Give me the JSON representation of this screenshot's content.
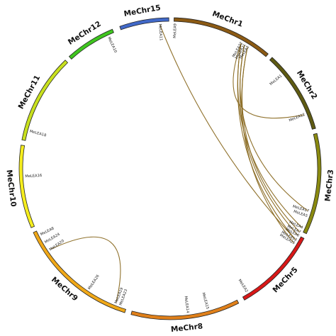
{
  "diagram": {
    "chromosomes": [
      {
        "name": "MeChr1",
        "color": "#8b5a14"
      },
      {
        "name": "MeChr2",
        "color": "#5e5a12"
      },
      {
        "name": "MeChr3",
        "color": "#8a8a10"
      },
      {
        "name": "MeChr5",
        "color": "#d81818"
      },
      {
        "name": "MeChr8",
        "color": "#e0801a"
      },
      {
        "name": "MeChr9",
        "color": "#f0a818"
      },
      {
        "name": "MeChr10",
        "color": "#f6ee1e"
      },
      {
        "name": "MeChr11",
        "color": "#c8e01e"
      },
      {
        "name": "MeChr12",
        "color": "#3fc51f"
      },
      {
        "name": "MeChr15",
        "color": "#4169c8"
      }
    ],
    "genes": [
      "MeLEA9",
      "MeLEA11",
      "MeLEA10",
      "MeLEA22",
      "MeLEA21",
      "MeLEA3",
      "MeLEA1",
      "MeLEA12",
      "MeLEA18",
      "MeLEA16",
      "MeLEA17",
      "MeLEA5",
      "MeLEA4",
      "MeLEA7",
      "MeLEA6",
      "MeLEA13",
      "MeLEA25",
      "MeLEA2",
      "MeLEA15",
      "MeLEA14",
      "MeLEA23",
      "MeLEA19",
      "MeLEA26",
      "MeLEA20",
      "MeLEA24",
      "MeLEA8"
    ],
    "links": [
      [
        "MeLEA11",
        "MeLEA13"
      ],
      [
        "MeLEA12",
        "MeLEA22"
      ],
      [
        "MeLEA22",
        "MeLEA13"
      ],
      [
        "MeLEA21",
        "MeLEA6"
      ],
      [
        "MeLEA3",
        "MeLEA25"
      ],
      [
        "MeLEA3",
        "MeLEA7"
      ],
      [
        "MeLEA21",
        "MeLEA17"
      ],
      [
        "MeLEA22",
        "MeLEA4"
      ],
      [
        "MeLEA20",
        "MeLEA19"
      ]
    ]
  }
}
